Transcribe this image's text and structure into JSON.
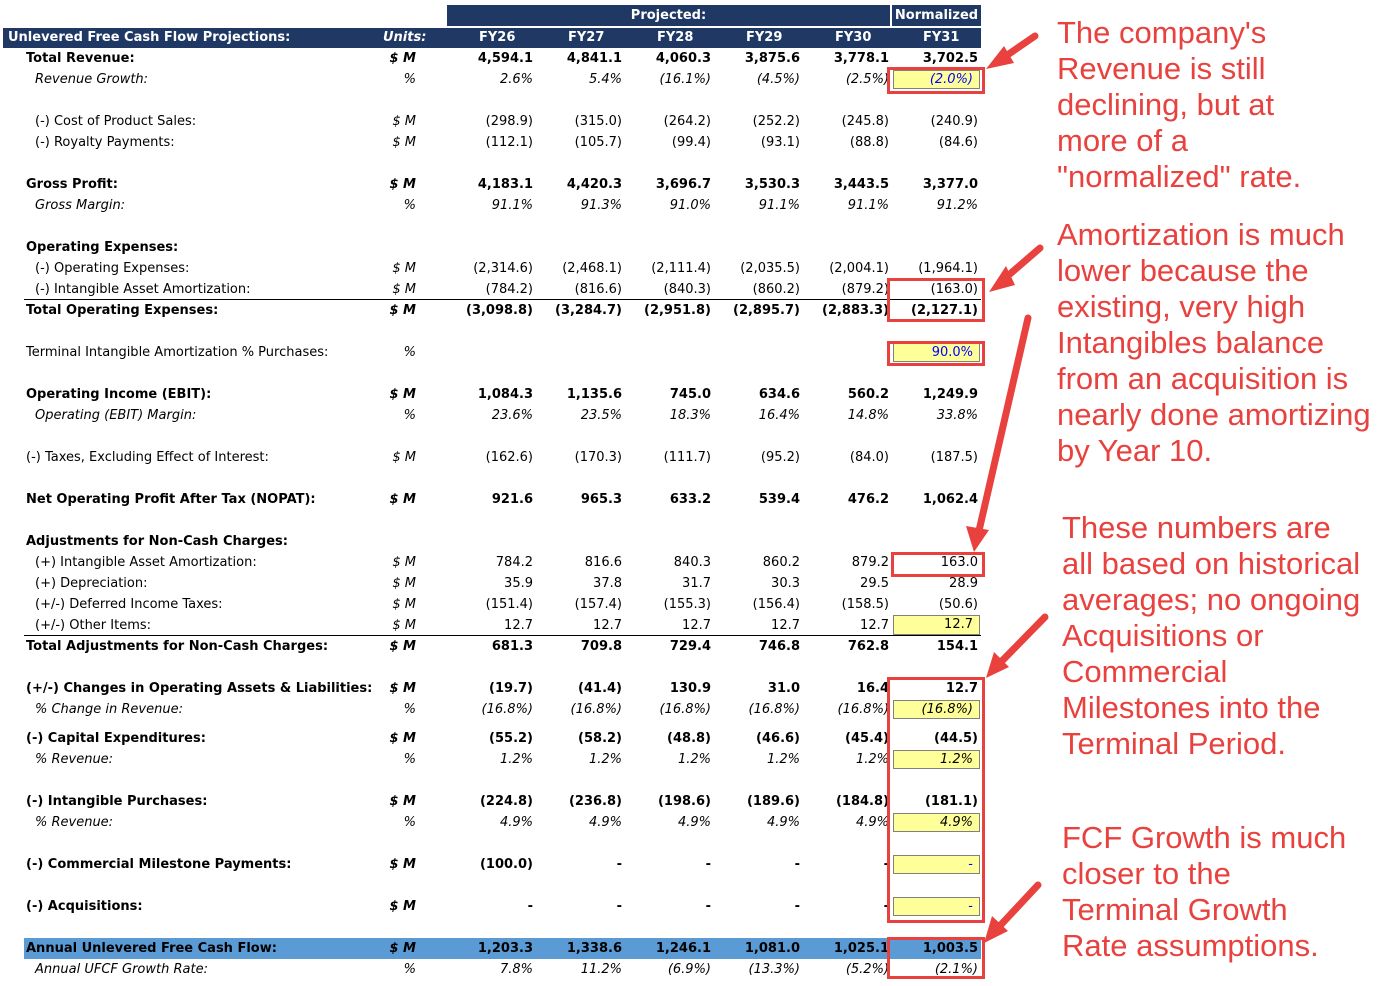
{
  "header": {
    "projected_label": "Projected:",
    "normalized_label": "Normalized",
    "title": "Unlevered Free Cash Flow Projections:",
    "units_label": "Units:",
    "years": [
      "FY26",
      "FY27",
      "FY28",
      "FY29",
      "FY30",
      "FY31"
    ]
  },
  "rows": [
    {
      "label": "Total Revenue:",
      "unit": "$ M",
      "values": [
        "4,594.1",
        "4,841.1",
        "4,060.3",
        "3,875.6",
        "3,778.1",
        "3,702.5"
      ]
    },
    {
      "label": "Revenue Growth:",
      "unit": "%",
      "values": [
        "2.6%",
        "5.4%",
        "(16.1%)",
        "(4.5%)",
        "(2.5%)",
        "(2.0%)"
      ]
    },
    {
      "label": "(-) Cost of Product Sales:",
      "unit": "$ M",
      "values": [
        "(298.9)",
        "(315.0)",
        "(264.2)",
        "(252.2)",
        "(245.8)",
        "(240.9)"
      ]
    },
    {
      "label": "(-) Royalty Payments:",
      "unit": "$ M",
      "values": [
        "(112.1)",
        "(105.7)",
        "(99.4)",
        "(93.1)",
        "(88.8)",
        "(84.6)"
      ]
    },
    {
      "label": "Gross Profit:",
      "unit": "$ M",
      "values": [
        "4,183.1",
        "4,420.3",
        "3,696.7",
        "3,530.3",
        "3,443.5",
        "3,377.0"
      ]
    },
    {
      "label": "Gross Margin:",
      "unit": "%",
      "values": [
        "91.1%",
        "91.3%",
        "91.0%",
        "91.1%",
        "91.1%",
        "91.2%"
      ]
    },
    {
      "label": "Operating Expenses:",
      "unit": "",
      "values": [
        "",
        "",
        "",
        "",
        "",
        ""
      ]
    },
    {
      "label": "(-) Operating Expenses:",
      "unit": "$ M",
      "values": [
        "(2,314.6)",
        "(2,468.1)",
        "(2,111.4)",
        "(2,035.5)",
        "(2,004.1)",
        "(1,964.1)"
      ]
    },
    {
      "label": "(-) Intangible Asset Amortization:",
      "unit": "$ M",
      "values": [
        "(784.2)",
        "(816.6)",
        "(840.3)",
        "(860.2)",
        "(879.2)",
        "(163.0)"
      ]
    },
    {
      "label": "Total Operating Expenses:",
      "unit": "$ M",
      "values": [
        "(3,098.8)",
        "(3,284.7)",
        "(2,951.8)",
        "(2,895.7)",
        "(2,883.3)",
        "(2,127.1)"
      ]
    },
    {
      "label": "Terminal Intangible Amortization % Purchases:",
      "unit": "%",
      "values": [
        "",
        "",
        "",
        "",
        "",
        "90.0%"
      ]
    },
    {
      "label": "Operating Income (EBIT):",
      "unit": "$ M",
      "values": [
        "1,084.3",
        "1,135.6",
        "745.0",
        "634.6",
        "560.2",
        "1,249.9"
      ]
    },
    {
      "label": "Operating (EBIT) Margin:",
      "unit": "%",
      "values": [
        "23.6%",
        "23.5%",
        "18.3%",
        "16.4%",
        "14.8%",
        "33.8%"
      ]
    },
    {
      "label": "(-) Taxes, Excluding Effect of Interest:",
      "unit": "$ M",
      "values": [
        "(162.6)",
        "(170.3)",
        "(111.7)",
        "(95.2)",
        "(84.0)",
        "(187.5)"
      ]
    },
    {
      "label": "Net Operating Profit After Tax (NOPAT):",
      "unit": "$ M",
      "values": [
        "921.6",
        "965.3",
        "633.2",
        "539.4",
        "476.2",
        "1,062.4"
      ]
    },
    {
      "label": "Adjustments for Non-Cash Charges:",
      "unit": "",
      "values": [
        "",
        "",
        "",
        "",
        "",
        ""
      ]
    },
    {
      "label": "(+) Intangible Asset Amortization:",
      "unit": "$ M",
      "values": [
        "784.2",
        "816.6",
        "840.3",
        "860.2",
        "879.2",
        "163.0"
      ]
    },
    {
      "label": "(+) Depreciation:",
      "unit": "$ M",
      "values": [
        "35.9",
        "37.8",
        "31.7",
        "30.3",
        "29.5",
        "28.9"
      ]
    },
    {
      "label": "(+/-) Deferred Income Taxes:",
      "unit": "$ M",
      "values": [
        "(151.4)",
        "(157.4)",
        "(155.3)",
        "(156.4)",
        "(158.5)",
        "(50.6)"
      ]
    },
    {
      "label": "(+/-) Other Items:",
      "unit": "$ M",
      "values": [
        "12.7",
        "12.7",
        "12.7",
        "12.7",
        "12.7",
        "12.7"
      ]
    },
    {
      "label": "Total Adjustments for Non-Cash Charges:",
      "unit": "$ M",
      "values": [
        "681.3",
        "709.8",
        "729.4",
        "746.8",
        "762.8",
        "154.1"
      ]
    },
    {
      "label": "(+/-) Changes in Operating Assets & Liabilities:",
      "unit": "$ M",
      "values": [
        "(19.7)",
        "(41.4)",
        "130.9",
        "31.0",
        "16.4",
        "12.7"
      ]
    },
    {
      "label": "% Change in Revenue:",
      "unit": "%",
      "values": [
        "(16.8%)",
        "(16.8%)",
        "(16.8%)",
        "(16.8%)",
        "(16.8%)",
        "(16.8%)"
      ]
    },
    {
      "label": "(-) Capital Expenditures:",
      "unit": "$ M",
      "values": [
        "(55.2)",
        "(58.2)",
        "(48.8)",
        "(46.6)",
        "(45.4)",
        "(44.5)"
      ]
    },
    {
      "label": "% Revenue:",
      "unit": "%",
      "values": [
        "1.2%",
        "1.2%",
        "1.2%",
        "1.2%",
        "1.2%",
        "1.2%"
      ]
    },
    {
      "label": "(-) Intangible Purchases:",
      "unit": "$ M",
      "values": [
        "(224.8)",
        "(236.8)",
        "(198.6)",
        "(189.6)",
        "(184.8)",
        "(181.1)"
      ]
    },
    {
      "label": "% Revenue:",
      "unit": "%",
      "values": [
        "4.9%",
        "4.9%",
        "4.9%",
        "4.9%",
        "4.9%",
        "4.9%"
      ]
    },
    {
      "label": "(-) Commercial Milestone Payments:",
      "unit": "$ M",
      "values": [
        "(100.0)",
        "-",
        "-",
        "-",
        "-",
        "-"
      ]
    },
    {
      "label": "(-) Acquisitions:",
      "unit": "$ M",
      "values": [
        "-",
        "-",
        "-",
        "-",
        "-",
        "-"
      ]
    },
    {
      "label": "Annual Unlevered Free Cash Flow:",
      "unit": "$ M",
      "values": [
        "1,203.3",
        "1,338.6",
        "1,246.1",
        "1,081.0",
        "1,025.1",
        "1,003.5"
      ]
    },
    {
      "label": "Annual UFCF Growth Rate:",
      "unit": "%",
      "values": [
        "7.8%",
        "11.2%",
        "(6.9%)",
        "(13.3%)",
        "(5.2%)",
        "(2.1%)"
      ]
    }
  ],
  "notes": [
    "The company's\nRevenue is still\ndeclining, but at\nmore of a\n\"normalized\" rate.",
    "Amortization is much\nlower because the\nexisting, very high\nIntangibles balance\nfrom an acquisition is\nnearly done amortizing\nby Year 10.",
    "These numbers are\nall based on historical\naverages; no ongoing\nAcquisitions or\nCommercial\nMilestones into the\nTerminal Period.",
    "FCF Growth is much\ncloser to the\nTerminal Growth\nRate assumptions."
  ],
  "colors": {
    "header_bg": "#1f3864",
    "ufcf_bg": "#5b9bd5",
    "input_bg": "#ffff99",
    "annotation": "#e8413e"
  }
}
